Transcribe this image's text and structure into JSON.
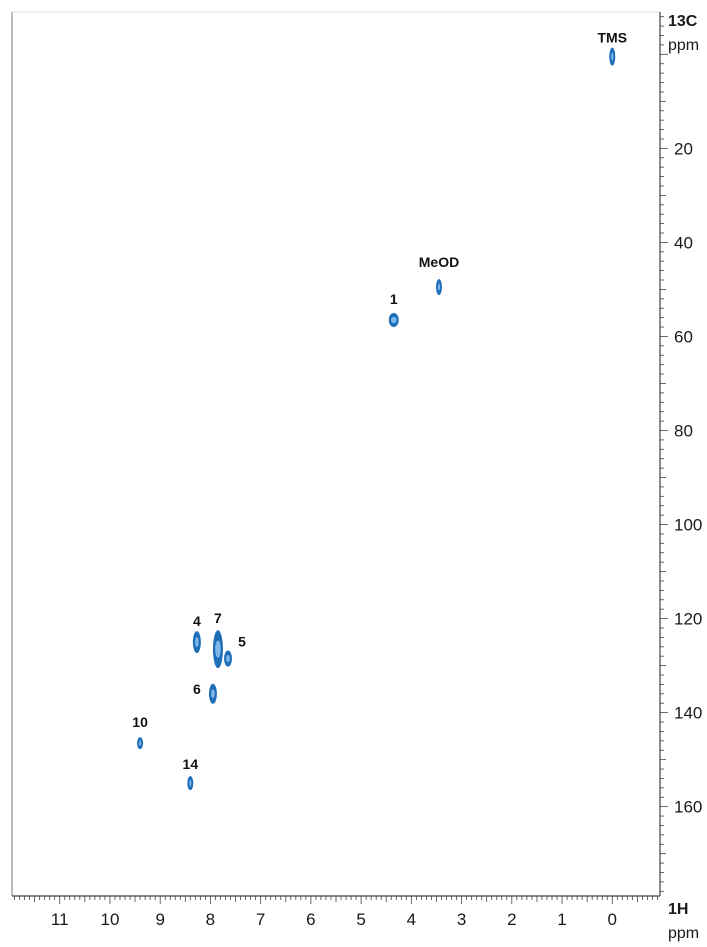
{
  "chart_data": {
    "type": "scatter",
    "title": "",
    "x_axis": {
      "nucleus": "1H",
      "unit": "ppm",
      "range": [
        11.95,
        -0.95
      ],
      "reversed": true,
      "ticks": [
        11,
        10,
        9,
        8,
        7,
        6,
        5,
        4,
        3,
        2,
        1,
        0
      ]
    },
    "y_axis": {
      "nucleus": "13C",
      "unit": "ppm",
      "range": [
        -9,
        179
      ],
      "reversed": true,
      "position": "right",
      "ticks": [
        20,
        40,
        60,
        80,
        100,
        120,
        140,
        160
      ]
    },
    "grid": false,
    "peak_color": "#1f6fb8",
    "series": [
      {
        "points": [
          {
            "label": "TMS",
            "x": 0.0,
            "y": 0.5
          },
          {
            "label": "MeOD",
            "x": 3.45,
            "y": 49.5
          },
          {
            "label": "1",
            "x": 4.35,
            "y": 56.5
          },
          {
            "label": "4",
            "x": 8.27,
            "y": 125.0
          },
          {
            "label": "7",
            "x": 7.85,
            "y": 126.5
          },
          {
            "label": "5",
            "x": 7.65,
            "y": 128.5
          },
          {
            "label": "6",
            "x": 7.95,
            "y": 136.0
          },
          {
            "label": "10",
            "x": 9.4,
            "y": 146.5
          },
          {
            "label": "14",
            "x": 8.4,
            "y": 155.0
          }
        ]
      }
    ]
  }
}
